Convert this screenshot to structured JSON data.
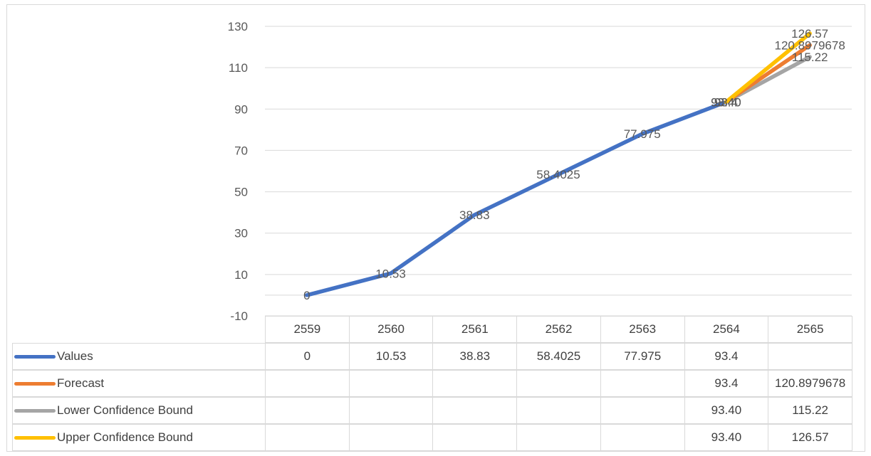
{
  "chart_data": {
    "type": "line",
    "categories": [
      "2559",
      "2560",
      "2561",
      "2562",
      "2563",
      "2564",
      "2565"
    ],
    "y_ticks": [
      "-10",
      "10",
      "30",
      "50",
      "70",
      "90",
      "110",
      "130"
    ],
    "ylim": [
      -10,
      130
    ],
    "grid": true,
    "legend": "data table below chart",
    "series": [
      {
        "name": "Values",
        "color": "#4472c4",
        "values": [
          0,
          10.53,
          38.83,
          58.4025,
          77.975,
          93.4,
          null
        ],
        "labels": [
          "0",
          "10.53",
          "38.83",
          "58.4025",
          "77.975",
          "93.4",
          ""
        ],
        "table": [
          "0",
          "10.53",
          "38.83",
          "58.4025",
          "77.975",
          "93.4",
          ""
        ]
      },
      {
        "name": "Forecast",
        "color": "#ed7d31",
        "values": [
          null,
          null,
          null,
          null,
          null,
          93.4,
          120.8979678
        ],
        "labels": [
          "",
          "",
          "",
          "",
          "",
          "93.4",
          "120.8979678"
        ],
        "table": [
          "",
          "",
          "",
          "",
          "",
          "93.4",
          "120.8979678"
        ]
      },
      {
        "name": "Lower Confidence Bound",
        "color": "#a5a5a5",
        "values": [
          null,
          null,
          null,
          null,
          null,
          93.4,
          115.22
        ],
        "labels": [
          "",
          "",
          "",
          "",
          "",
          "93.40",
          "115.22"
        ],
        "table": [
          "",
          "",
          "",
          "",
          "",
          "93.40",
          "115.22"
        ]
      },
      {
        "name": "Upper Confidence Bound",
        "color": "#ffc000",
        "values": [
          null,
          null,
          null,
          null,
          null,
          93.4,
          126.57
        ],
        "labels": [
          "",
          "",
          "",
          "",
          "",
          "93.40",
          "126.57"
        ],
        "table": [
          "",
          "",
          "",
          "",
          "",
          "93.40",
          "126.57"
        ]
      }
    ]
  }
}
